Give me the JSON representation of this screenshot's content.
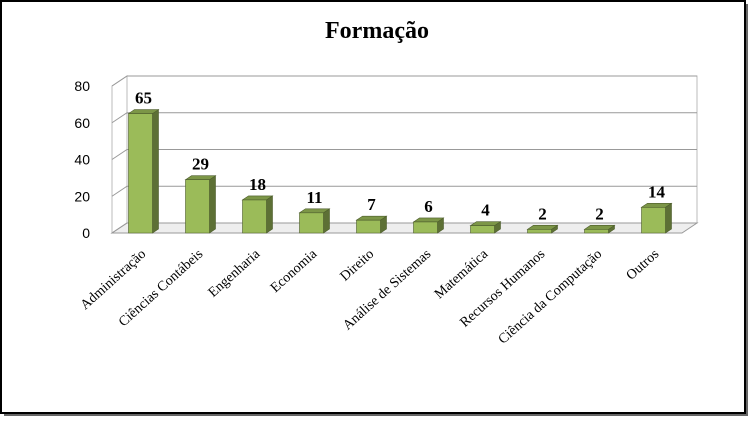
{
  "chart_data": {
    "type": "bar",
    "title": "Formação",
    "categories": [
      "Administração",
      "Ciências Contábeis",
      "Engenharia",
      "Economia",
      "Direito",
      "Análise de Sistemas",
      "Matemática",
      "Recursos Humanos",
      "Ciência da Computação",
      "Outros"
    ],
    "values": [
      65,
      29,
      18,
      11,
      7,
      6,
      4,
      2,
      2,
      14
    ],
    "color": "#9bbb59",
    "ylim": [
      0,
      80
    ],
    "yticks": [
      0,
      20,
      40,
      60,
      80
    ],
    "grid": true
  }
}
